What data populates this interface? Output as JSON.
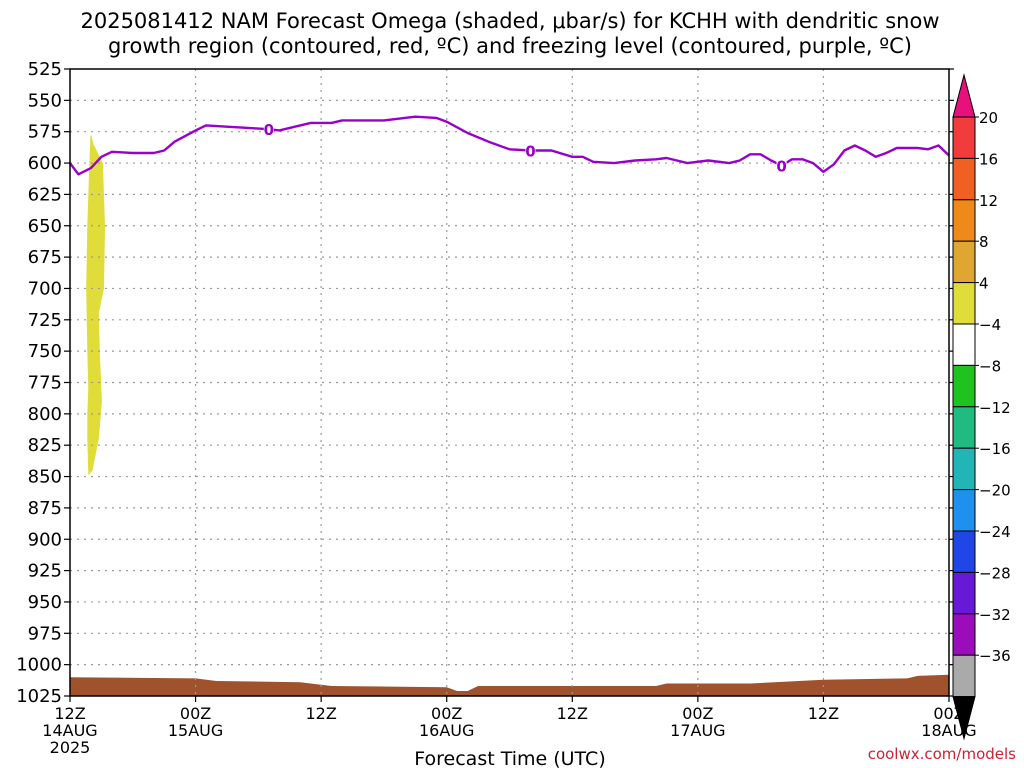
{
  "chart_data": {
    "type": "contour",
    "title": [
      "2025081412 NAM Forecast Omega (shaded, μbar/s) for KCHH with dendritic snow",
      "growth region (contoured, red, ºC) and freezing level (contoured, purple, ºC)"
    ],
    "xlabel": "Forecast Time (UTC)",
    "ylabel": "",
    "x_range_hours": [
      0,
      84
    ],
    "y_range_hPa": [
      525,
      1025
    ],
    "y_inverted": true,
    "yticks": [
      525,
      550,
      575,
      600,
      625,
      650,
      675,
      700,
      725,
      750,
      775,
      800,
      825,
      850,
      875,
      900,
      925,
      950,
      975,
      1000,
      1025
    ],
    "xticks": [
      {
        "hour": 0,
        "lines": [
          "12Z",
          "14AUG",
          "2025"
        ]
      },
      {
        "hour": 12,
        "lines": [
          "00Z",
          "15AUG"
        ]
      },
      {
        "hour": 24,
        "lines": [
          "12Z"
        ]
      },
      {
        "hour": 36,
        "lines": [
          "00Z",
          "16AUG"
        ]
      },
      {
        "hour": 48,
        "lines": [
          "12Z"
        ]
      },
      {
        "hour": 60,
        "lines": [
          "00Z",
          "17AUG"
        ]
      },
      {
        "hour": 72,
        "lines": [
          "12Z"
        ]
      },
      {
        "hour": 84,
        "lines": [
          "00Z",
          "18AUG"
        ]
      }
    ],
    "grid": true,
    "freezing_level": {
      "color": "#9900cc",
      "contour_label": "0",
      "label_hours": [
        19,
        44,
        68
      ],
      "points": [
        [
          0,
          600
        ],
        [
          0.8,
          609
        ],
        [
          2,
          604
        ],
        [
          3,
          595
        ],
        [
          4,
          591
        ],
        [
          6,
          592
        ],
        [
          8,
          592
        ],
        [
          9,
          590
        ],
        [
          10,
          583
        ],
        [
          12,
          574
        ],
        [
          13,
          570
        ],
        [
          15,
          571
        ],
        [
          17,
          572
        ],
        [
          19,
          573
        ],
        [
          20,
          574
        ],
        [
          22,
          570
        ],
        [
          23,
          568
        ],
        [
          25,
          568
        ],
        [
          26,
          566
        ],
        [
          28,
          566
        ],
        [
          30,
          566
        ],
        [
          31,
          565
        ],
        [
          33,
          563
        ],
        [
          35,
          564
        ],
        [
          36,
          567
        ],
        [
          38,
          576
        ],
        [
          40,
          583
        ],
        [
          42,
          589
        ],
        [
          44,
          590
        ],
        [
          46,
          590
        ],
        [
          48,
          595
        ],
        [
          49,
          595
        ],
        [
          50,
          599
        ],
        [
          52,
          600
        ],
        [
          54,
          598
        ],
        [
          56,
          597
        ],
        [
          57,
          596
        ],
        [
          58,
          598
        ],
        [
          59,
          600
        ],
        [
          61,
          598
        ],
        [
          63,
          600
        ],
        [
          64,
          598
        ],
        [
          65,
          593
        ],
        [
          66,
          593
        ],
        [
          67,
          598
        ],
        [
          68,
          602
        ],
        [
          69,
          597
        ],
        [
          70,
          597
        ],
        [
          71,
          600
        ],
        [
          72,
          607
        ],
        [
          73,
          601
        ],
        [
          74,
          590
        ],
        [
          75,
          586
        ],
        [
          76,
          590
        ],
        [
          77,
          595
        ],
        [
          78,
          592
        ],
        [
          79,
          588
        ],
        [
          80,
          588
        ],
        [
          81,
          588
        ],
        [
          82,
          589
        ],
        [
          83,
          586
        ],
        [
          84,
          594
        ]
      ]
    },
    "omega_shaded": {
      "level_range": [
        4,
        8
      ],
      "color": "#e0dc3a",
      "left_edge": [
        [
          2.0,
          578
        ],
        [
          1.9,
          600
        ],
        [
          1.7,
          650
        ],
        [
          1.6,
          700
        ],
        [
          1.7,
          750
        ],
        [
          1.8,
          780
        ],
        [
          1.7,
          800
        ],
        [
          1.7,
          820
        ],
        [
          1.8,
          848
        ]
      ],
      "right_edge": [
        [
          2.2,
          585
        ],
        [
          3.1,
          600
        ],
        [
          3.3,
          650
        ],
        [
          3.2,
          700
        ],
        [
          2.7,
          720
        ],
        [
          2.8,
          750
        ],
        [
          3.0,
          790
        ],
        [
          2.7,
          820
        ],
        [
          2.1,
          845
        ]
      ]
    },
    "terrain": {
      "color": "#a0522d",
      "top": [
        [
          0,
          1010
        ],
        [
          12,
          1011
        ],
        [
          14,
          1013
        ],
        [
          22,
          1014
        ],
        [
          25,
          1017
        ],
        [
          36,
          1018
        ],
        [
          37,
          1021
        ],
        [
          38,
          1021
        ],
        [
          39,
          1017
        ],
        [
          56,
          1017
        ],
        [
          57,
          1015
        ],
        [
          65,
          1015
        ],
        [
          72,
          1012
        ],
        [
          80,
          1011
        ],
        [
          81,
          1009
        ],
        [
          84,
          1008
        ]
      ]
    },
    "colorbar": {
      "units": "μbar/s",
      "levels": [
        20,
        16,
        12,
        8,
        4,
        -4,
        -8,
        -12,
        -16,
        -20,
        -24,
        -28,
        -32,
        -36
      ],
      "colors": [
        "#e8107a",
        "#f23c3c",
        "#f06022",
        "#ef8a1a",
        "#e0a632",
        "#e0dc3a",
        "#ffffff",
        "#20c220",
        "#20bb80",
        "#21b5b5",
        "#2090ee",
        "#2046e8",
        "#6619d6",
        "#9b0cba",
        "#aaaaaa",
        "#000000"
      ]
    },
    "credit": "coolwx.com/models"
  }
}
